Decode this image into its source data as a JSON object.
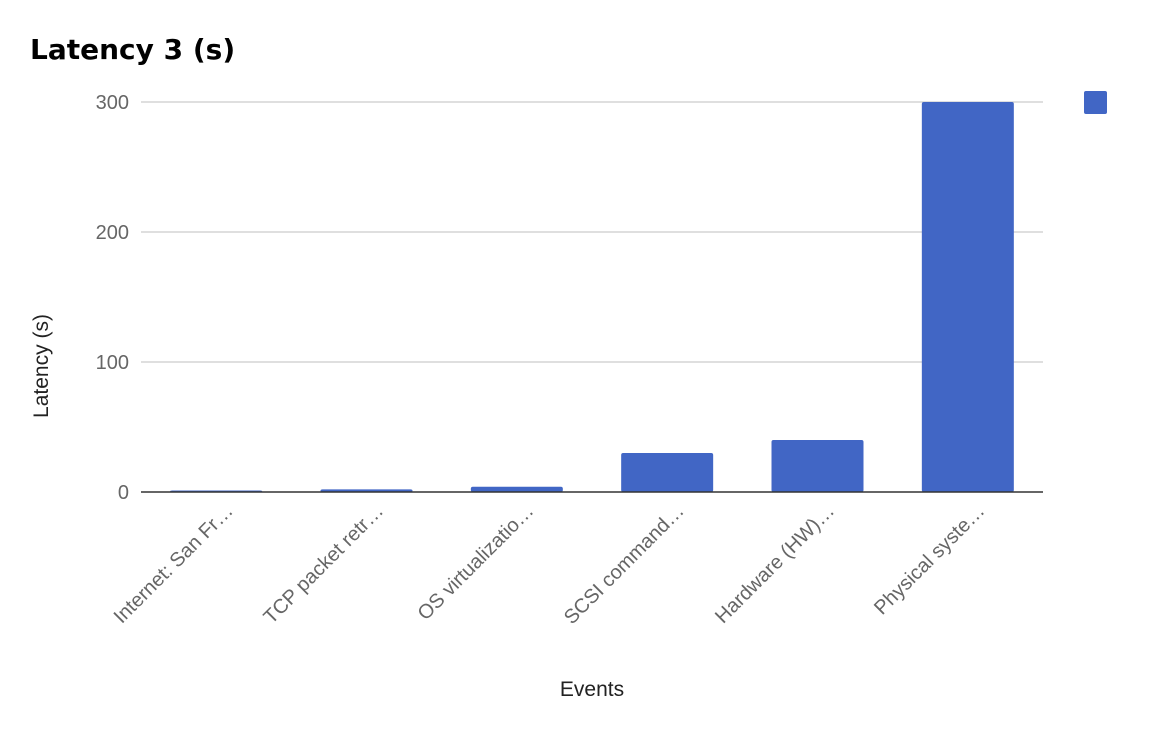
{
  "chart_data": {
    "type": "bar",
    "title": "Latency 3 (s)",
    "xlabel": "Events",
    "ylabel": "Latency (s)",
    "categories": [
      "Internet: San Fr…",
      "TCP packet retr…",
      "OS virtualizatio…",
      "SCSI command…",
      "Hardware (HW)…",
      "Physical syste…"
    ],
    "values": [
      0.5,
      2,
      4,
      30,
      40,
      300
    ],
    "yticks": [
      "0",
      "100",
      "200",
      "300"
    ],
    "ylim": [
      0,
      300
    ],
    "grid": true,
    "legend": "top-right",
    "colors": {
      "bar": "#4166c5",
      "grid": "#cccccc",
      "baseline": "#333333"
    }
  }
}
